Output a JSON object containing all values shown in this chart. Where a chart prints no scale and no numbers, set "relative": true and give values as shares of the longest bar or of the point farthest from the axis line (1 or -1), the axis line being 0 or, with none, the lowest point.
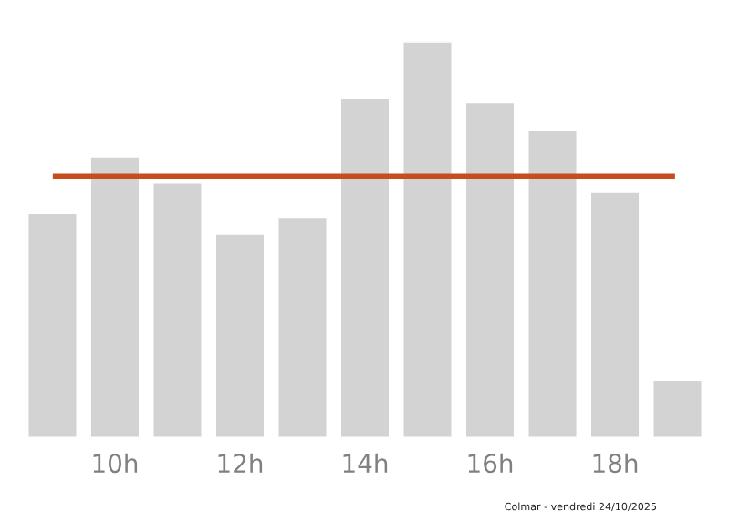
{
  "chart_data": {
    "type": "bar",
    "relative": true,
    "categories": [
      null,
      "10h",
      null,
      "12h",
      null,
      "14h",
      null,
      "16h",
      null,
      "18h",
      null
    ],
    "values": [
      0.567,
      0.71,
      0.644,
      0.517,
      0.557,
      0.859,
      1,
      0.847,
      0.778,
      0.623,
      0.147
    ],
    "color": "#d3d3d3",
    "ref_lines": [
      {
        "axis": "y",
        "value": 0.66,
        "color": "#c44e1c",
        "line_style": "solid"
      }
    ],
    "grid": false,
    "legend": false,
    "annotations": [
      "Colmar - vendredi 24/10/2025"
    ]
  }
}
